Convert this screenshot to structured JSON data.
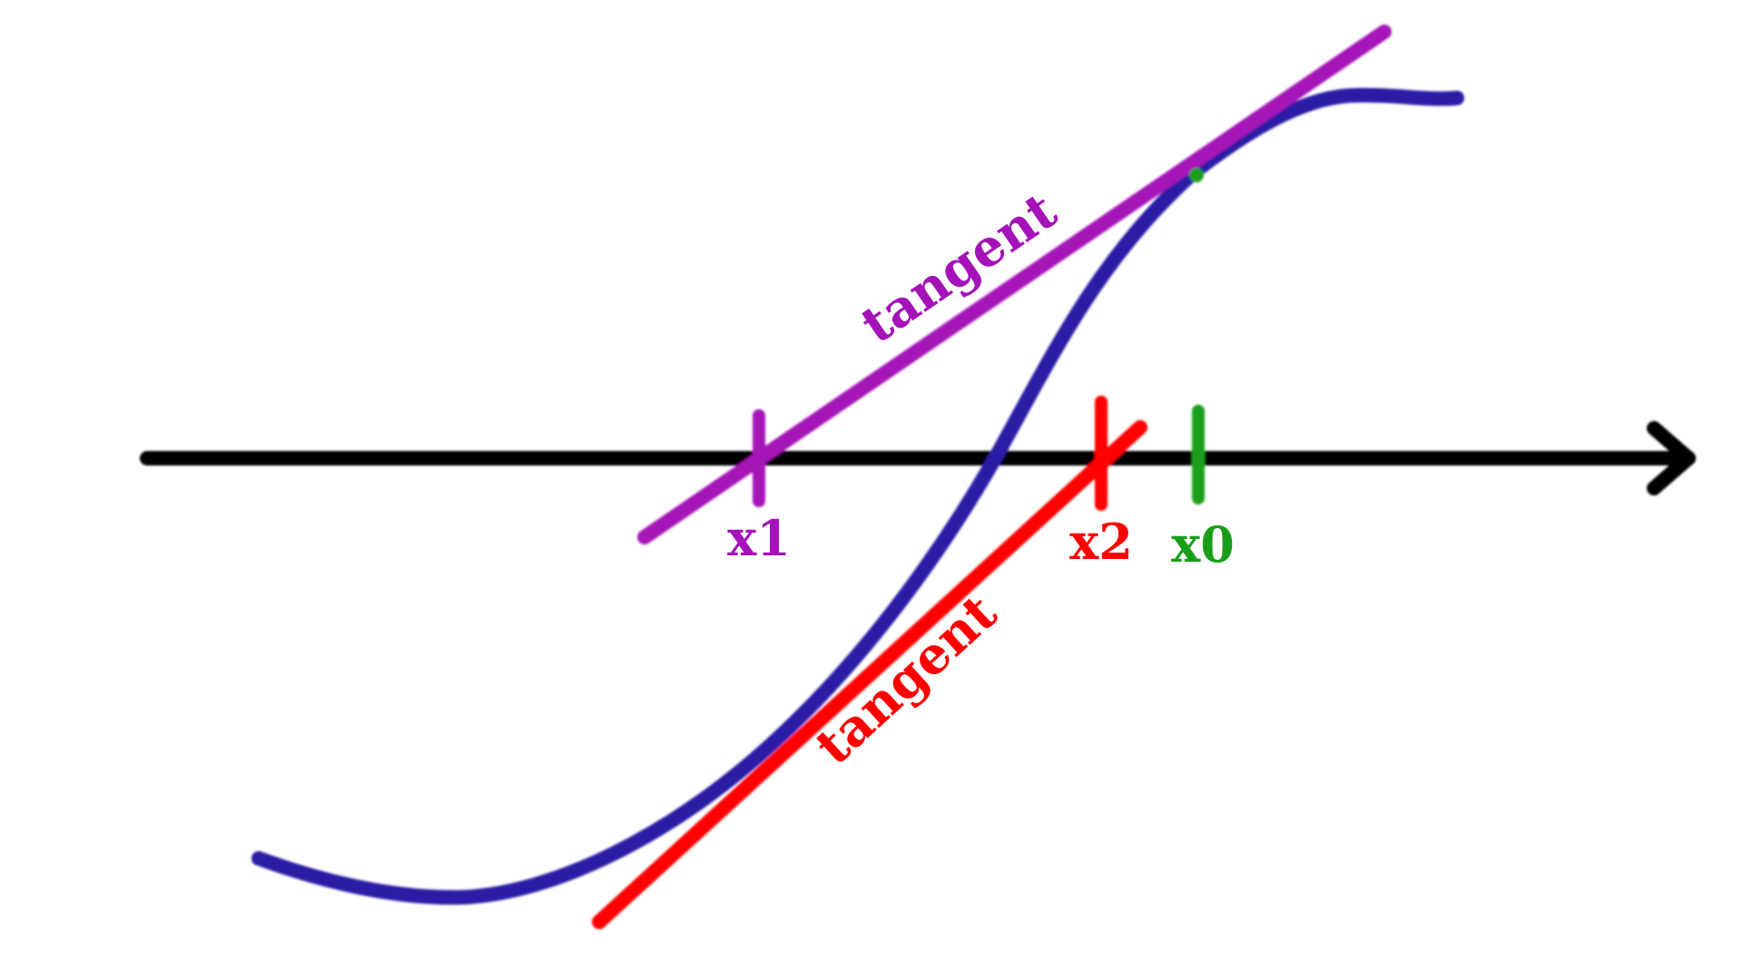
{
  "colors": {
    "axis": "#000000",
    "curve": "#2c1aa5",
    "tangent1": "#a412b8",
    "tangent2": "#ff0000",
    "x0": "#1a9e1a"
  },
  "labels": {
    "tangent1": "tangent",
    "tangent2": "tangent",
    "x0": "x0",
    "x1": "x1",
    "x2": "x2"
  }
}
